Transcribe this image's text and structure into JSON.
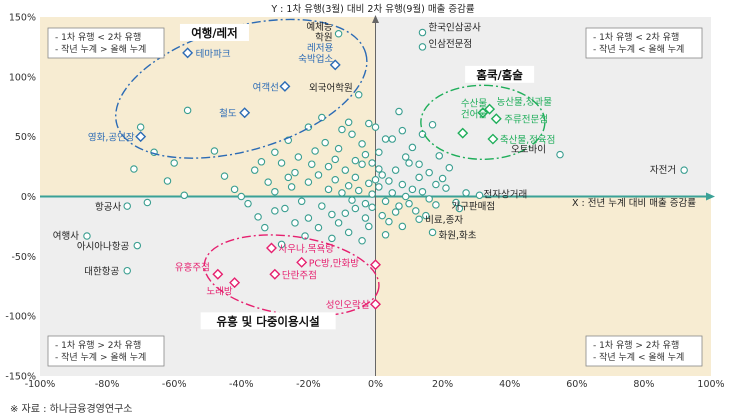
{
  "source_note": "※ 자료 : 하나금융경영연구소",
  "chart_data": {
    "type": "scatter",
    "title": "",
    "xlabel": "X : 전년 누계 대비 매출 증감률",
    "ylabel": "Y : 1차 유행(3월) 대비 2차 유행(9월) 매출 증감률",
    "xlim": [
      -100,
      100
    ],
    "ylim": [
      -150,
      150
    ],
    "x_ticks": [
      "-100%",
      "-80%",
      "-60%",
      "-40%",
      "-20%",
      "0%",
      "20%",
      "40%",
      "60%",
      "80%",
      "100%"
    ],
    "y_ticks": [
      "150%",
      "100%",
      "50%",
      "0%",
      "-50%",
      "-100%",
      "-150%"
    ],
    "colors": {
      "quadrant_top_left": "#f7ecd2",
      "quadrant_top_right": "#eeeeee",
      "quadrant_bottom_left": "#eeeeee",
      "quadrant_bottom_right": "#f7ecd2",
      "axis": "#3aa197",
      "blue": "#2c6bb5",
      "green": "#1fae5a",
      "pink": "#e6206f",
      "teal_point": "#3a9e90"
    },
    "quadrant_notes": {
      "top_left": [
        "- 1차 유행 < 2차 유행",
        "- 작년 누계 > 올해 누계"
      ],
      "top_right": [
        "- 1차 유행 < 2차 유행",
        "- 작년 누계 < 올해 누계"
      ],
      "bottom_left": [
        "- 1차 유행 > 2차 유행",
        "- 작년 누계 > 올해 누계"
      ],
      "bottom_right": [
        "- 1차 유행 > 2차 유행",
        "- 작년 누계 < 올해 누계"
      ]
    },
    "groups": [
      {
        "name": "여행/레저",
        "color": "#2c6bb5",
        "points": [
          {
            "label": "테마파크",
            "x": -56,
            "y": 120
          },
          {
            "label": "레저용\n숙박업소",
            "x": -12,
            "y": 110
          },
          {
            "label": "여객선",
            "x": -27,
            "y": 92
          },
          {
            "label": "철도",
            "x": -39,
            "y": 70
          },
          {
            "label": "영화,공연장",
            "x": -70,
            "y": 50
          }
        ]
      },
      {
        "name": "홈쿡/홈술",
        "color": "#1fae5a",
        "points": [
          {
            "label": "수산물,\n건어물",
            "x": 32,
            "y": 70
          },
          {
            "label": "농산물,청과물",
            "x": 34,
            "y": 73
          },
          {
            "label": "주류전문점",
            "x": 36,
            "y": 65
          },
          {
            "label": "축산물,정육점",
            "x": 35,
            "y": 48
          },
          {
            "label": "",
            "x": 26,
            "y": 53
          }
        ]
      },
      {
        "name": "유흥 및 다중이용시설",
        "color": "#e6206f",
        "points": [
          {
            "label": "사우나,목욕탕",
            "x": -31,
            "y": -43
          },
          {
            "label": "PC방,만화방",
            "x": -22,
            "y": -55
          },
          {
            "label": "유흥주점",
            "x": -47,
            "y": -65
          },
          {
            "label": "단란주점",
            "x": -30,
            "y": -65
          },
          {
            "label": "노래방",
            "x": -42,
            "y": -72
          },
          {
            "label": "성인오락실",
            "x": 0,
            "y": -90
          },
          {
            "label": "",
            "x": 0,
            "y": -57
          }
        ]
      }
    ],
    "labeled_points": [
      {
        "label": "한국인삼공사",
        "x": 14,
        "y": 137
      },
      {
        "label": "인삼전문점",
        "x": 14,
        "y": 125
      },
      {
        "label": "예체능\n학원",
        "x": -11,
        "y": 136
      },
      {
        "label": "외국어학원",
        "x": -5,
        "y": 85
      },
      {
        "label": "오토바이",
        "x": 55,
        "y": 35
      },
      {
        "label": "자전거",
        "x": 92,
        "y": 22
      },
      {
        "label": "전자상거래",
        "x": 31,
        "y": 1
      },
      {
        "label": "가구판매점",
        "x": 25,
        "y": -10
      },
      {
        "label": "비료,종자",
        "x": 13,
        "y": -19
      },
      {
        "label": "화원,화초",
        "x": 17,
        "y": -30
      },
      {
        "label": "항공사",
        "x": -74,
        "y": -8
      },
      {
        "label": "여행사",
        "x": -86,
        "y": -33
      },
      {
        "label": "아시아나항공",
        "x": -71,
        "y": -41
      },
      {
        "label": "대한항공",
        "x": -74,
        "y": -62
      }
    ],
    "cloud_points": [
      [
        -20,
        12
      ],
      [
        -17,
        18
      ],
      [
        -14,
        6
      ],
      [
        -12,
        14
      ],
      [
        -10,
        3
      ],
      [
        -9,
        22
      ],
      [
        -8,
        9
      ],
      [
        -7,
        -3
      ],
      [
        -6,
        16
      ],
      [
        -5,
        5
      ],
      [
        -4,
        27
      ],
      [
        -3,
        -6
      ],
      [
        -2,
        11
      ],
      [
        -1,
        2
      ],
      [
        1,
        8
      ],
      [
        2,
        18
      ],
      [
        3,
        -4
      ],
      [
        4,
        13
      ],
      [
        5,
        3
      ],
      [
        6,
        22
      ],
      [
        7,
        -8
      ],
      [
        8,
        10
      ],
      [
        9,
        0
      ],
      [
        10,
        28
      ],
      [
        11,
        6
      ],
      [
        12,
        -12
      ],
      [
        13,
        16
      ],
      [
        14,
        4
      ],
      [
        16,
        -2
      ],
      [
        18,
        10
      ],
      [
        19,
        34
      ],
      [
        21,
        7
      ],
      [
        -22,
        -4
      ],
      [
        -25,
        8
      ],
      [
        -27,
        -10
      ],
      [
        -24,
        20
      ],
      [
        -19,
        27
      ],
      [
        -16,
        -8
      ],
      [
        -13,
        -15
      ],
      [
        -11,
        -22
      ],
      [
        -9,
        -14
      ],
      [
        -6,
        -10
      ],
      [
        -3,
        -18
      ],
      [
        -1,
        -9
      ],
      [
        2,
        -16
      ],
      [
        4,
        -21
      ],
      [
        6,
        -13
      ],
      [
        8,
        -25
      ],
      [
        10,
        -6
      ],
      [
        15,
        -16
      ],
      [
        -30,
        4
      ],
      [
        -32,
        12
      ],
      [
        -28,
        28
      ],
      [
        -23,
        33
      ],
      [
        -18,
        38
      ],
      [
        -15,
        45
      ],
      [
        -11,
        40
      ],
      [
        -7,
        52
      ],
      [
        -4,
        44
      ],
      [
        1,
        37
      ],
      [
        5,
        48
      ],
      [
        8,
        55
      ],
      [
        11,
        41
      ],
      [
        14,
        52
      ],
      [
        17,
        60
      ],
      [
        7,
        71
      ],
      [
        -8,
        62
      ],
      [
        -20,
        58
      ],
      [
        -26,
        47
      ],
      [
        -45,
        17
      ],
      [
        -36,
        22
      ],
      [
        -48,
        38
      ],
      [
        -62,
        13
      ],
      [
        -57,
        1
      ],
      [
        -40,
        0
      ],
      [
        -35,
        -17
      ],
      [
        -33,
        -26
      ],
      [
        -28,
        -40
      ],
      [
        -21,
        -33
      ],
      [
        -17,
        -26
      ],
      [
        -13,
        -35
      ],
      [
        -8,
        -30
      ],
      [
        -4,
        -37
      ],
      [
        3,
        -32
      ],
      [
        -2,
        61
      ],
      [
        0,
        58
      ],
      [
        3,
        48
      ],
      [
        -1,
        28
      ],
      [
        -3,
        35
      ],
      [
        0,
        14
      ],
      [
        1,
        23
      ],
      [
        -2,
        -25
      ],
      [
        -10,
        56
      ],
      [
        -14,
        25
      ],
      [
        -12,
        31
      ],
      [
        -26,
        16
      ],
      [
        -42,
        6
      ],
      [
        -38,
        -6
      ],
      [
        -30,
        -12
      ],
      [
        -24,
        -22
      ],
      [
        -20,
        -18
      ],
      [
        -6,
        30
      ],
      [
        9,
        33
      ],
      [
        13,
        27
      ],
      [
        16,
        20
      ],
      [
        20,
        15
      ],
      [
        22,
        24
      ],
      [
        24,
        -5
      ],
      [
        27,
        3
      ],
      [
        18,
        -7
      ],
      [
        -66,
        37
      ],
      [
        -56,
        72
      ],
      [
        -70,
        58
      ],
      [
        -72,
        23
      ],
      [
        -68,
        -5
      ],
      [
        -60,
        28
      ],
      [
        -34,
        29
      ],
      [
        -30,
        37
      ],
      [
        -16,
        66
      ]
    ]
  }
}
